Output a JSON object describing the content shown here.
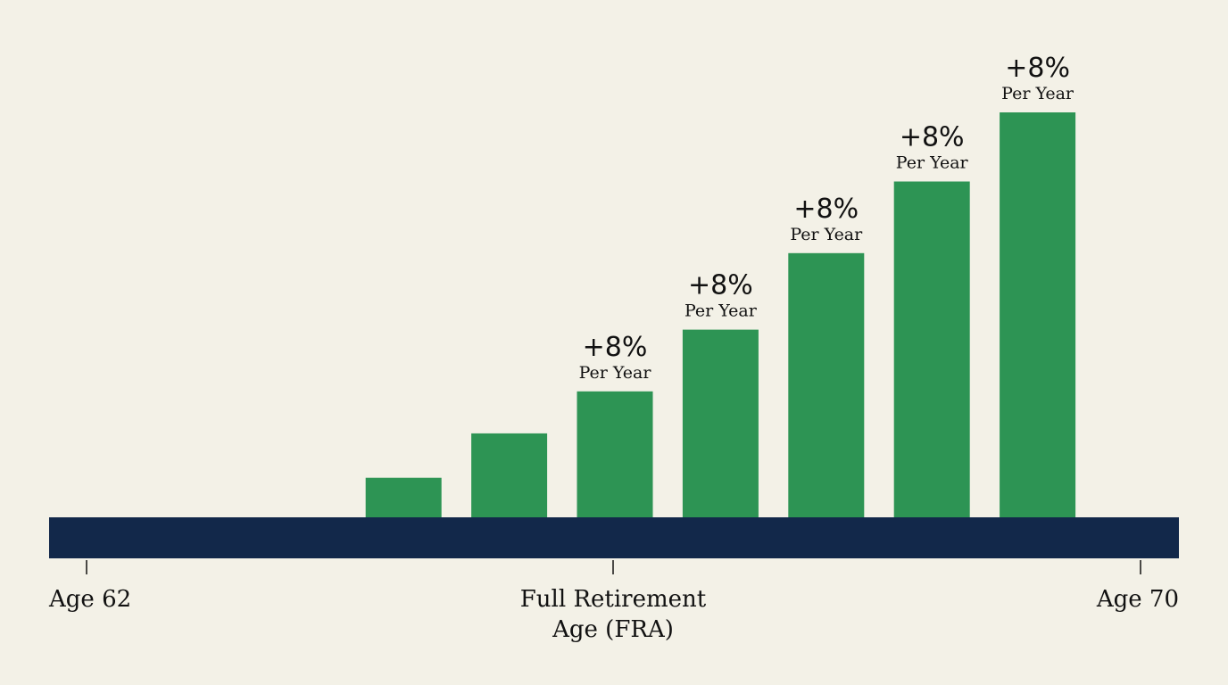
{
  "colors": {
    "background": "#f3f1e7",
    "bar": "#2d9454",
    "baseline": "#12284a",
    "text": "#111111"
  },
  "chart_data": {
    "type": "bar",
    "grid": false,
    "categories": [
      "",
      "",
      "",
      "",
      "",
      "",
      "",
      "",
      "",
      ""
    ],
    "values": [
      0,
      0,
      0,
      8,
      17,
      25.5,
      38,
      53.5,
      68,
      82
    ],
    "ylim": [
      0,
      82
    ],
    "bar_annotations": [
      {
        "index": 5,
        "value": "+8%",
        "sub": "Per Year"
      },
      {
        "index": 6,
        "value": "+8%",
        "sub": "Per Year"
      },
      {
        "index": 7,
        "value": "+8%",
        "sub": "Per Year"
      },
      {
        "index": 8,
        "value": "+8%",
        "sub": "Per Year"
      },
      {
        "index": 9,
        "value": "+8%",
        "sub": "Per Year"
      }
    ],
    "axis_labels": [
      {
        "text": "Age 62",
        "category_index": 0
      },
      {
        "text": "Full Retirement",
        "text2": "Age (FRA)",
        "category_index": 5
      },
      {
        "text": "Age 70",
        "category_index": 10
      }
    ]
  }
}
